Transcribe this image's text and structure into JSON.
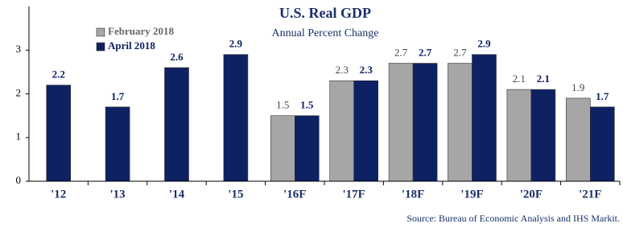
{
  "chart_data": {
    "type": "bar",
    "title": "U.S. Real GDP",
    "subtitle": "Annual Percent Change",
    "categories": [
      "'12",
      "'13",
      "'14",
      "'15",
      "'16F",
      "'17F",
      "'18F",
      "'19F",
      "'20F",
      "'21F"
    ],
    "series": [
      {
        "name": "February 2018",
        "color": "#a6a6a6",
        "values": [
          null,
          null,
          null,
          null,
          1.5,
          2.3,
          2.7,
          2.7,
          2.1,
          1.9
        ]
      },
      {
        "name": "April 2018",
        "color": "#0d2163",
        "values": [
          2.2,
          1.7,
          2.6,
          2.9,
          1.5,
          2.3,
          2.7,
          2.9,
          2.1,
          1.7
        ]
      }
    ],
    "ylim": [
      0,
      4
    ],
    "yticks": [
      0,
      1,
      2,
      3
    ],
    "source": "Source:  Bureau of Economic Analysis and IHS Markit."
  }
}
